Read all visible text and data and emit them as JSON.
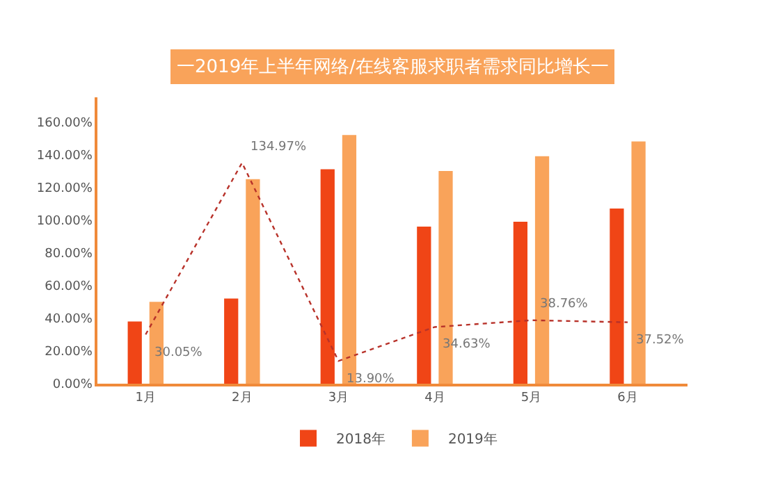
{
  "chart_data": {
    "type": "bar",
    "title": "一2019年上半年网络/在线客服求职者需求同比增长一",
    "categories": [
      "1月",
      "2月",
      "3月",
      "4月",
      "5月",
      "6月"
    ],
    "series": [
      {
        "name": "2018年",
        "color": "#f04516",
        "values": [
          38,
          52,
          131,
          96,
          99,
          107
        ]
      },
      {
        "name": "2019年",
        "color": "#f9a35a",
        "values": [
          50,
          125,
          152,
          130,
          139,
          148
        ]
      },
      {
        "type": "line",
        "color": "#b8322a",
        "line_style": "dotted",
        "marker": "none",
        "values": [
          30.05,
          134.97,
          13.9,
          34.63,
          38.76,
          37.52
        ],
        "value_labels": [
          "30.05%",
          "134.97%",
          "13.90%",
          "34.63%",
          "38.76%",
          "37.52%"
        ]
      }
    ],
    "ylim": [
      0,
      175
    ],
    "yticks": [
      {
        "value": 0,
        "label": "0.00%"
      },
      {
        "value": 20,
        "label": "20.00%"
      },
      {
        "value": 40,
        "label": "40.00%"
      },
      {
        "value": 60,
        "label": "60.00%"
      },
      {
        "value": 80,
        "label": "80.00%"
      },
      {
        "value": 100,
        "label": "100.00%"
      },
      {
        "value": 120,
        "label": "120.00%"
      },
      {
        "value": 140,
        "label": "140.00%"
      },
      {
        "value": 160,
        "label": "160.00%"
      }
    ],
    "legend": "bottom"
  }
}
